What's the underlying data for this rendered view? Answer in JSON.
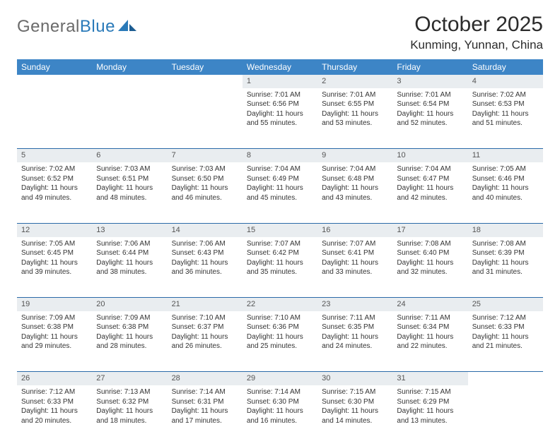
{
  "logo": {
    "word1": "General",
    "word2": "Blue"
  },
  "title": "October 2025",
  "subtitle": "Kunming, Yunnan, China",
  "colors": {
    "header_bg": "#3d85c6",
    "header_text": "#ffffff",
    "daynum_bg": "#e9edf0",
    "row_border": "#2a6aa8",
    "logo_gray": "#6a6a6a",
    "logo_blue": "#2a7ab9"
  },
  "weekdays": [
    "Sunday",
    "Monday",
    "Tuesday",
    "Wednesday",
    "Thursday",
    "Friday",
    "Saturday"
  ],
  "weeks": [
    [
      null,
      null,
      null,
      {
        "n": "1",
        "sr": "7:01 AM",
        "ss": "6:56 PM",
        "dh": "11",
        "dm": "55"
      },
      {
        "n": "2",
        "sr": "7:01 AM",
        "ss": "6:55 PM",
        "dh": "11",
        "dm": "53"
      },
      {
        "n": "3",
        "sr": "7:01 AM",
        "ss": "6:54 PM",
        "dh": "11",
        "dm": "52"
      },
      {
        "n": "4",
        "sr": "7:02 AM",
        "ss": "6:53 PM",
        "dh": "11",
        "dm": "51"
      }
    ],
    [
      {
        "n": "5",
        "sr": "7:02 AM",
        "ss": "6:52 PM",
        "dh": "11",
        "dm": "49"
      },
      {
        "n": "6",
        "sr": "7:03 AM",
        "ss": "6:51 PM",
        "dh": "11",
        "dm": "48"
      },
      {
        "n": "7",
        "sr": "7:03 AM",
        "ss": "6:50 PM",
        "dh": "11",
        "dm": "46"
      },
      {
        "n": "8",
        "sr": "7:04 AM",
        "ss": "6:49 PM",
        "dh": "11",
        "dm": "45"
      },
      {
        "n": "9",
        "sr": "7:04 AM",
        "ss": "6:48 PM",
        "dh": "11",
        "dm": "43"
      },
      {
        "n": "10",
        "sr": "7:04 AM",
        "ss": "6:47 PM",
        "dh": "11",
        "dm": "42"
      },
      {
        "n": "11",
        "sr": "7:05 AM",
        "ss": "6:46 PM",
        "dh": "11",
        "dm": "40"
      }
    ],
    [
      {
        "n": "12",
        "sr": "7:05 AM",
        "ss": "6:45 PM",
        "dh": "11",
        "dm": "39"
      },
      {
        "n": "13",
        "sr": "7:06 AM",
        "ss": "6:44 PM",
        "dh": "11",
        "dm": "38"
      },
      {
        "n": "14",
        "sr": "7:06 AM",
        "ss": "6:43 PM",
        "dh": "11",
        "dm": "36"
      },
      {
        "n": "15",
        "sr": "7:07 AM",
        "ss": "6:42 PM",
        "dh": "11",
        "dm": "35"
      },
      {
        "n": "16",
        "sr": "7:07 AM",
        "ss": "6:41 PM",
        "dh": "11",
        "dm": "33"
      },
      {
        "n": "17",
        "sr": "7:08 AM",
        "ss": "6:40 PM",
        "dh": "11",
        "dm": "32"
      },
      {
        "n": "18",
        "sr": "7:08 AM",
        "ss": "6:39 PM",
        "dh": "11",
        "dm": "31"
      }
    ],
    [
      {
        "n": "19",
        "sr": "7:09 AM",
        "ss": "6:38 PM",
        "dh": "11",
        "dm": "29"
      },
      {
        "n": "20",
        "sr": "7:09 AM",
        "ss": "6:38 PM",
        "dh": "11",
        "dm": "28"
      },
      {
        "n": "21",
        "sr": "7:10 AM",
        "ss": "6:37 PM",
        "dh": "11",
        "dm": "26"
      },
      {
        "n": "22",
        "sr": "7:10 AM",
        "ss": "6:36 PM",
        "dh": "11",
        "dm": "25"
      },
      {
        "n": "23",
        "sr": "7:11 AM",
        "ss": "6:35 PM",
        "dh": "11",
        "dm": "24"
      },
      {
        "n": "24",
        "sr": "7:11 AM",
        "ss": "6:34 PM",
        "dh": "11",
        "dm": "22"
      },
      {
        "n": "25",
        "sr": "7:12 AM",
        "ss": "6:33 PM",
        "dh": "11",
        "dm": "21"
      }
    ],
    [
      {
        "n": "26",
        "sr": "7:12 AM",
        "ss": "6:33 PM",
        "dh": "11",
        "dm": "20"
      },
      {
        "n": "27",
        "sr": "7:13 AM",
        "ss": "6:32 PM",
        "dh": "11",
        "dm": "18"
      },
      {
        "n": "28",
        "sr": "7:14 AM",
        "ss": "6:31 PM",
        "dh": "11",
        "dm": "17"
      },
      {
        "n": "29",
        "sr": "7:14 AM",
        "ss": "6:30 PM",
        "dh": "11",
        "dm": "16"
      },
      {
        "n": "30",
        "sr": "7:15 AM",
        "ss": "6:30 PM",
        "dh": "11",
        "dm": "14"
      },
      {
        "n": "31",
        "sr": "7:15 AM",
        "ss": "6:29 PM",
        "dh": "11",
        "dm": "13"
      },
      null
    ]
  ],
  "labels": {
    "sunrise": "Sunrise: ",
    "sunset": "Sunset: ",
    "daylight_pre": "Daylight: ",
    "daylight_mid": " hours and ",
    "daylight_post": " minutes."
  }
}
